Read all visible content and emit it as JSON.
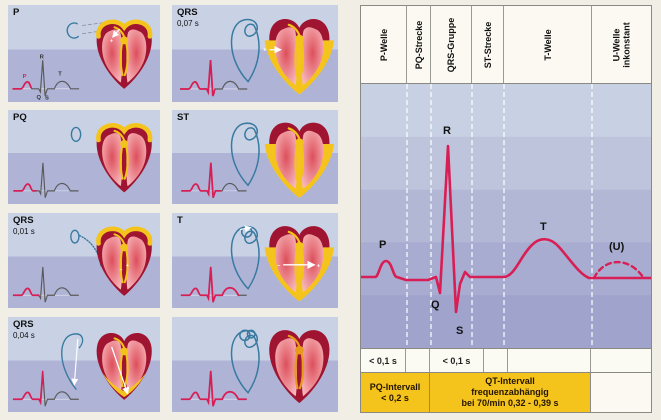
{
  "marks": {
    "plus": "+",
    "minus": "−"
  },
  "left_panels": {
    "mini_wave_labels": {
      "p": "P",
      "q": "Q",
      "r": "R",
      "s": "S",
      "t": "T"
    },
    "panels": [
      {
        "label": "P",
        "sublabel": "",
        "loop": "crescent",
        "heart": [
          "atria",
          "arrowSmall"
        ],
        "highlight": 0.3,
        "wave_labels": true
      },
      {
        "label": "QRS",
        "sublabel": "0,07 s",
        "loop": "fullLoop",
        "heart": [
          "vent",
          "arrowSide"
        ],
        "highlight": 0.52,
        "wave_labels": false
      },
      {
        "label": "PQ",
        "sublabel": "",
        "loop": "oval",
        "heart": [
          "atria"
        ],
        "highlight": 0.36,
        "wave_labels": false
      },
      {
        "label": "ST",
        "sublabel": "",
        "loop": "fullLoop",
        "heart": [
          "vent"
        ],
        "highlight": 0.6,
        "wave_labels": false
      },
      {
        "label": "QRS",
        "sublabel": "0,01 s",
        "loop": "ovalArc",
        "heart": [
          "atria",
          "septumMarks"
        ],
        "highlight": 0.4,
        "wave_labels": false
      },
      {
        "label": "T",
        "sublabel": "",
        "loop": "loopCircle",
        "heart": [
          "vent",
          "arrowRepol"
        ],
        "highlight": 0.87,
        "wave_labels": false
      },
      {
        "label": "QRS",
        "sublabel": "0,04 s",
        "loop": "halfLoop",
        "heart": [
          "apex",
          "arrowLong"
        ],
        "highlight": 0.46,
        "wave_labels": false
      },
      {
        "label": "",
        "sublabel": "",
        "loop": "loopDouble",
        "heart": [
          "rest"
        ],
        "highlight": 1.0,
        "wave_labels": false
      }
    ]
  },
  "diagram": {
    "columns": [
      {
        "lines": [
          "P-Welle"
        ]
      },
      {
        "lines": [
          "PQ-Strecke"
        ]
      },
      {
        "lines": [
          "QRS-Gruppe"
        ]
      },
      {
        "lines": [
          "ST-Strecke"
        ]
      },
      {
        "lines": [
          "T-Welle"
        ]
      },
      {
        "lines": [
          "U-Welle",
          "inkonstant"
        ]
      }
    ],
    "wave_labels": {
      "p": "P",
      "q": "Q",
      "r": "R",
      "s": "S",
      "t": "T",
      "u": "(U)"
    },
    "timing_cells": [
      {
        "text": "< 0,1 s"
      },
      {
        "text": ""
      },
      {
        "text": "< 0,1 s"
      },
      {
        "text": ""
      },
      {
        "text": ""
      },
      {
        "text": ""
      }
    ],
    "intervals": [
      {
        "lines": [
          "PQ-Intervall",
          "< 0,2 s"
        ]
      },
      {
        "lines": [
          "QT-Intervall",
          "frequenzabhängig",
          "bei 70/min 0,32 - 0,39 s"
        ]
      },
      {
        "lines": []
      }
    ]
  },
  "colors": {
    "pink": "#D81F55",
    "yellow": "#F4C41C",
    "loop_blue": "#3A7AA0",
    "heart_dark": "#9F1430",
    "chamber_deep": "#DC4F5C",
    "chamber_mid": "#EE8F96",
    "chamber_light": "#F6B9BD",
    "conduction": "#F2C319",
    "conduction_rest": "#E89B1A",
    "plot_bands": [
      "#C8D0E3",
      "#BEC4DC",
      "#B3B7D6",
      "#A9ACD1",
      "#A0A3CB"
    ]
  }
}
